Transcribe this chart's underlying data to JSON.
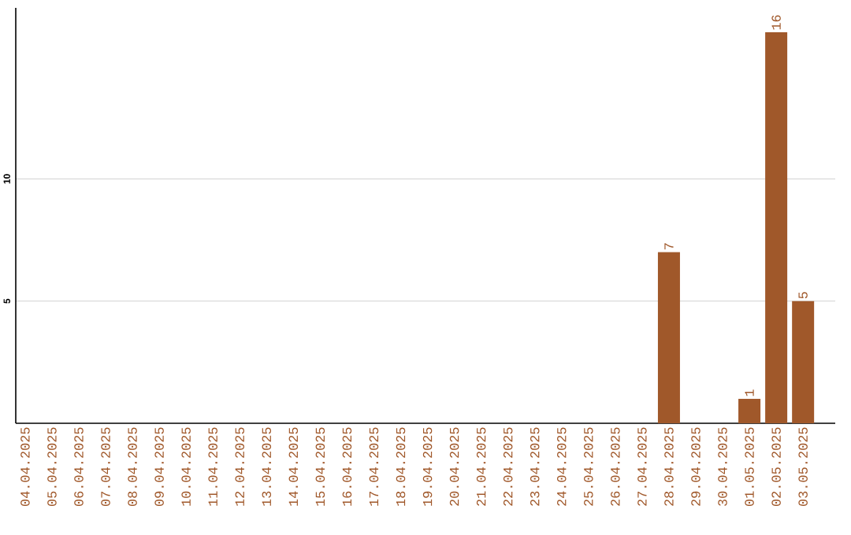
{
  "chart_data": {
    "type": "bar",
    "categories": [
      "04.04.2025",
      "05.04.2025",
      "06.04.2025",
      "07.04.2025",
      "08.04.2025",
      "09.04.2025",
      "10.04.2025",
      "11.04.2025",
      "12.04.2025",
      "13.04.2025",
      "14.04.2025",
      "15.04.2025",
      "16.04.2025",
      "17.04.2025",
      "18.04.2025",
      "19.04.2025",
      "20.04.2025",
      "21.04.2025",
      "22.04.2025",
      "23.04.2025",
      "24.04.2025",
      "25.04.2025",
      "26.04.2025",
      "27.04.2025",
      "28.04.2025",
      "29.04.2025",
      "30.04.2025",
      "01.05.2025",
      "02.05.2025",
      "03.05.2025"
    ],
    "values": [
      0,
      0,
      0,
      0,
      0,
      0,
      0,
      0,
      0,
      0,
      0,
      0,
      0,
      0,
      0,
      0,
      0,
      0,
      0,
      0,
      0,
      0,
      0,
      0,
      7,
      0,
      0,
      1,
      16,
      5
    ],
    "value_labels": [
      null,
      null,
      null,
      null,
      null,
      null,
      null,
      null,
      null,
      null,
      null,
      null,
      null,
      null,
      null,
      null,
      null,
      null,
      null,
      null,
      null,
      null,
      null,
      null,
      "7",
      null,
      null,
      "1",
      "16",
      "5"
    ],
    "color": "#a0582a",
    "ylim": [
      0,
      17
    ],
    "yticks": [
      5,
      10
    ],
    "grid": "y"
  }
}
